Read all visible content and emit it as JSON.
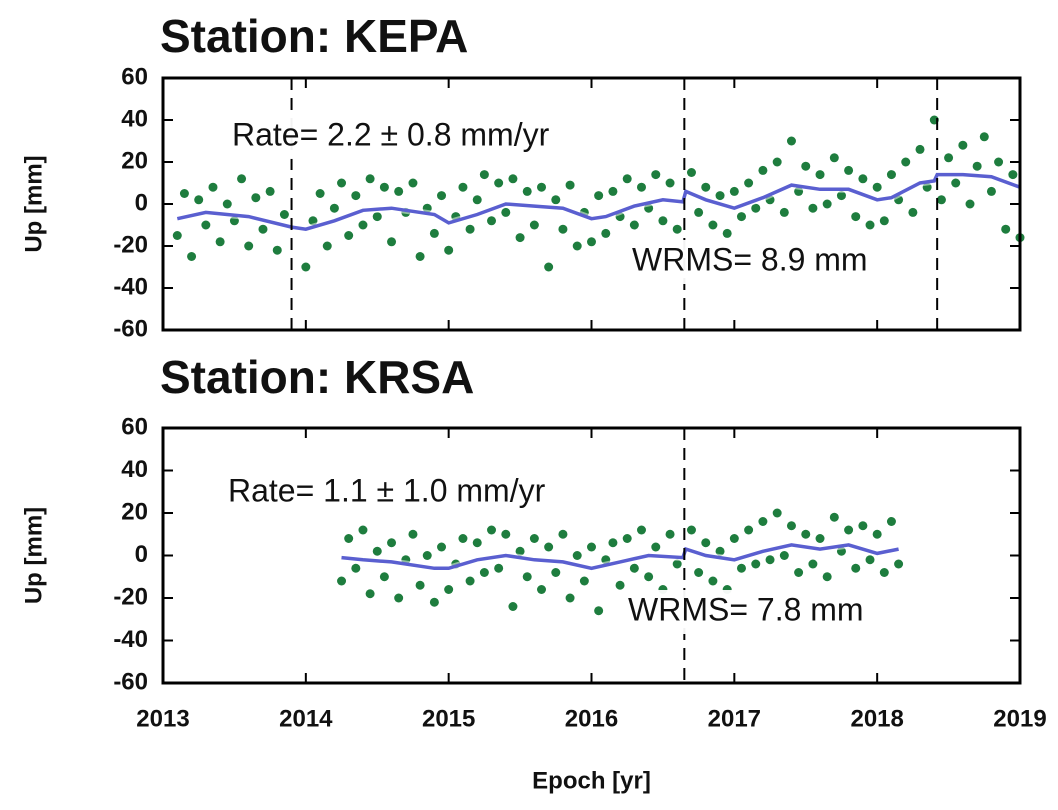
{
  "chart_data": [
    {
      "type": "scatter",
      "title": "Station: KEPA",
      "y_label": "Up [mm]",
      "annotations": [
        "Rate=  2.2 ±  0.8 mm/yr",
        "WRMS=  8.9 mm"
      ],
      "xlim": [
        2013,
        2019
      ],
      "xticks": [
        2013,
        2014,
        2015,
        2016,
        2017,
        2018,
        2019
      ],
      "ylim": [
        -60,
        60
      ],
      "yticks": [
        -60,
        -40,
        -20,
        0,
        20,
        40,
        60
      ],
      "breaks": [
        2013.9,
        2016.65,
        2018.42
      ],
      "x": [
        2013.1,
        2013.15,
        2013.2,
        2013.25,
        2013.3,
        2013.35,
        2013.4,
        2013.45,
        2013.5,
        2013.55,
        2013.6,
        2013.65,
        2013.7,
        2013.75,
        2013.8,
        2013.85,
        2014.0,
        2014.05,
        2014.1,
        2014.15,
        2014.2,
        2014.25,
        2014.3,
        2014.35,
        2014.4,
        2014.45,
        2014.5,
        2014.55,
        2014.6,
        2014.65,
        2014.7,
        2014.75,
        2014.8,
        2014.85,
        2014.9,
        2014.95,
        2015.0,
        2015.05,
        2015.1,
        2015.15,
        2015.2,
        2015.25,
        2015.3,
        2015.35,
        2015.4,
        2015.45,
        2015.5,
        2015.55,
        2015.6,
        2015.65,
        2015.7,
        2015.75,
        2015.8,
        2015.85,
        2015.9,
        2015.95,
        2016.0,
        2016.05,
        2016.1,
        2016.15,
        2016.2,
        2016.25,
        2016.3,
        2016.35,
        2016.4,
        2016.45,
        2016.5,
        2016.55,
        2016.6,
        2016.7,
        2016.75,
        2016.8,
        2016.85,
        2016.9,
        2016.95,
        2017.0,
        2017.05,
        2017.1,
        2017.15,
        2017.2,
        2017.25,
        2017.3,
        2017.35,
        2017.4,
        2017.45,
        2017.5,
        2017.55,
        2017.6,
        2017.65,
        2017.7,
        2017.75,
        2017.8,
        2017.85,
        2017.9,
        2017.95,
        2018.0,
        2018.05,
        2018.1,
        2018.15,
        2018.2,
        2018.25,
        2018.3,
        2018.35,
        2018.4,
        2018.45,
        2018.5,
        2018.55,
        2018.6,
        2018.65,
        2018.7,
        2018.75,
        2018.8,
        2018.85,
        2018.9,
        2018.95,
        2019.0
      ],
      "series": [
        {
          "color": "#1e7d3e",
          "values": [
            -15,
            5,
            -25,
            2,
            -10,
            8,
            -18,
            0,
            -8,
            12,
            -20,
            3,
            -12,
            6,
            -22,
            -5,
            -30,
            -8,
            5,
            -20,
            -2,
            10,
            -15,
            4,
            -10,
            12,
            -6,
            8,
            -18,
            6,
            -4,
            10,
            -25,
            -2,
            -14,
            4,
            -22,
            -6,
            8,
            -12,
            2,
            14,
            -8,
            10,
            -4,
            12,
            -16,
            6,
            -10,
            8,
            -30,
            2,
            -12,
            9,
            -20,
            -4,
            -18,
            4,
            -14,
            6,
            -6,
            12,
            -10,
            8,
            -2,
            14,
            -8,
            10,
            -12,
            15,
            -4,
            8,
            -10,
            4,
            -14,
            6,
            -6,
            10,
            -2,
            16,
            2,
            20,
            -4,
            30,
            6,
            18,
            -2,
            14,
            0,
            22,
            4,
            16,
            -6,
            12,
            -10,
            8,
            -8,
            14,
            2,
            20,
            -4,
            26,
            8,
            40,
            2,
            22,
            10,
            28,
            0,
            18,
            32,
            6,
            20,
            -12,
            14,
            -16
          ]
        },
        {
          "type": "line",
          "color": "#5a5fd0",
          "x": [
            2013.1,
            2013.3,
            2013.6,
            2013.9,
            2014.0,
            2014.2,
            2014.4,
            2014.6,
            2014.9,
            2015.0,
            2015.2,
            2015.4,
            2015.6,
            2015.8,
            2016.0,
            2016.1,
            2016.3,
            2016.5,
            2016.64,
            2016.66,
            2016.8,
            2017.0,
            2017.2,
            2017.4,
            2017.6,
            2017.8,
            2018.0,
            2018.1,
            2018.3,
            2018.4,
            2018.42,
            2018.6,
            2018.8,
            2019.0
          ],
          "values": [
            -7,
            -4,
            -6,
            -11,
            -12,
            -8,
            -3,
            -2,
            -5,
            -9,
            -5,
            0,
            -1,
            -2,
            -7,
            -6,
            -1,
            2,
            1,
            6,
            2,
            -2,
            3,
            9,
            7,
            7,
            2,
            3,
            10,
            11,
            14,
            14,
            13,
            8
          ]
        }
      ]
    },
    {
      "type": "scatter",
      "title": "Station: KRSA",
      "y_label": "Up [mm]",
      "x_label": "Epoch [yr]",
      "annotations": [
        "Rate=  1.1 ±  1.0 mm/yr",
        "WRMS=  7.8 mm"
      ],
      "xlim": [
        2013,
        2019
      ],
      "xticks": [
        2013,
        2014,
        2015,
        2016,
        2017,
        2018,
        2019
      ],
      "ylim": [
        -60,
        60
      ],
      "yticks": [
        -60,
        -40,
        -20,
        0,
        20,
        40,
        60
      ],
      "breaks": [
        2016.65
      ],
      "x": [
        2014.25,
        2014.3,
        2014.35,
        2014.4,
        2014.45,
        2014.5,
        2014.55,
        2014.6,
        2014.65,
        2014.7,
        2014.75,
        2014.8,
        2014.85,
        2014.9,
        2014.95,
        2015.0,
        2015.05,
        2015.1,
        2015.15,
        2015.2,
        2015.25,
        2015.3,
        2015.35,
        2015.4,
        2015.45,
        2015.5,
        2015.55,
        2015.6,
        2015.65,
        2015.7,
        2015.75,
        2015.8,
        2015.85,
        2015.9,
        2015.95,
        2016.0,
        2016.05,
        2016.1,
        2016.15,
        2016.2,
        2016.25,
        2016.3,
        2016.35,
        2016.4,
        2016.45,
        2016.5,
        2016.55,
        2016.6,
        2016.7,
        2016.75,
        2016.8,
        2016.85,
        2016.9,
        2016.95,
        2017.0,
        2017.05,
        2017.1,
        2017.15,
        2017.2,
        2017.25,
        2017.3,
        2017.35,
        2017.4,
        2017.45,
        2017.5,
        2017.55,
        2017.6,
        2017.65,
        2017.7,
        2017.75,
        2017.8,
        2017.85,
        2017.9,
        2017.95,
        2018.0,
        2018.05,
        2018.1,
        2018.15
      ],
      "series": [
        {
          "color": "#1e7d3e",
          "values": [
            -12,
            8,
            -6,
            12,
            -18,
            2,
            -10,
            6,
            -20,
            -2,
            10,
            -14,
            0,
            -22,
            4,
            -16,
            -4,
            8,
            -12,
            6,
            -8,
            12,
            -6,
            10,
            -24,
            2,
            -10,
            8,
            -16,
            4,
            -8,
            10,
            -20,
            0,
            -12,
            4,
            -26,
            -2,
            6,
            -14,
            8,
            -6,
            12,
            -10,
            4,
            -16,
            10,
            -4,
            12,
            -8,
            6,
            -12,
            2,
            -16,
            8,
            -6,
            12,
            -4,
            16,
            -2,
            20,
            0,
            14,
            -8,
            10,
            -4,
            8,
            -10,
            18,
            2,
            12,
            -6,
            14,
            -2,
            10,
            -8,
            16,
            -4
          ]
        },
        {
          "type": "line",
          "color": "#5a5fd0",
          "x": [
            2014.25,
            2014.4,
            2014.6,
            2014.9,
            2015.0,
            2015.2,
            2015.4,
            2015.6,
            2015.8,
            2016.0,
            2016.2,
            2016.4,
            2016.64,
            2016.66,
            2016.8,
            2017.0,
            2017.2,
            2017.4,
            2017.6,
            2017.8,
            2018.0,
            2018.15
          ],
          "values": [
            -1,
            -2,
            -3,
            -6,
            -6,
            -2,
            0,
            -2,
            -3,
            -6,
            -3,
            0,
            -1,
            3,
            0,
            -2,
            2,
            5,
            3,
            5,
            1,
            3
          ]
        }
      ]
    }
  ]
}
